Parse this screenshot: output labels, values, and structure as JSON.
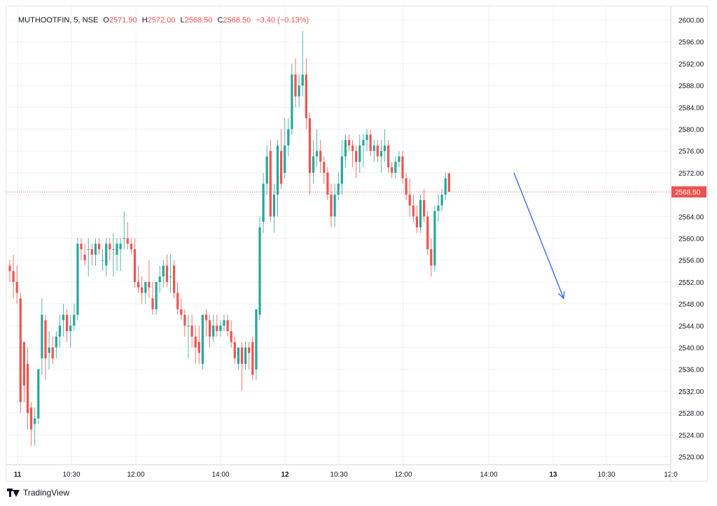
{
  "legend": {
    "symbol": "MUTHOOTFIN, 5, NSE",
    "o_label": "O",
    "o_value": "2571.90",
    "h_label": "H",
    "h_value": "2572.00",
    "l_label": "L",
    "l_value": "2568.50",
    "c_label": "C",
    "c_value": "2568.50",
    "change": "−3.40 (−0.13%)"
  },
  "brand": {
    "name": "TradingView"
  },
  "colors": {
    "up": "#26a69a",
    "down": "#ef5350",
    "grid": "#eef1f4",
    "arrow": "#2962ff",
    "price_line": "#ef5350"
  },
  "chart_data": {
    "type": "candlestick",
    "symbol": "MUTHOOTFIN",
    "interval": "5",
    "exchange": "NSE",
    "ylim": [
      2518,
      2602
    ],
    "y_ticks": [
      "2600.00",
      "2596.00",
      "2592.00",
      "2588.00",
      "2584.00",
      "2580.00",
      "2576.00",
      "2572.00",
      "2568.00",
      "2564.00",
      "2560.00",
      "2556.00",
      "2552.00",
      "2548.00",
      "2544.00",
      "2540.00",
      "2536.00",
      "2532.00",
      "2528.00",
      "2524.00",
      "2520.00"
    ],
    "x_ticks": [
      "11",
      "10:30",
      "12:00",
      "14:00",
      "12",
      "10:30",
      "12:00",
      "14:00",
      "13",
      "10:30",
      "12:0"
    ],
    "bold_x_ticks": [
      "11",
      "12",
      "13"
    ],
    "last_price": "2568.50",
    "grid": true,
    "candles": [
      [
        2555,
        2556,
        2552,
        2554
      ],
      [
        2554,
        2557,
        2549,
        2552
      ],
      [
        2552,
        2555,
        2548,
        2550
      ],
      [
        2549,
        2550,
        2528,
        2530
      ],
      [
        2541,
        2541,
        2530,
        2533
      ],
      [
        2537,
        2540,
        2525,
        2528
      ],
      [
        2529,
        2530,
        2522,
        2525
      ],
      [
        2526,
        2529,
        2522,
        2527
      ],
      [
        2527,
        2536,
        2526,
        2536
      ],
      [
        2538,
        2549,
        2535,
        2546
      ],
      [
        2545,
        2546,
        2534,
        2538
      ],
      [
        2539,
        2543,
        2536,
        2540
      ],
      [
        2540,
        2542,
        2537,
        2538
      ],
      [
        2540,
        2543,
        2538,
        2542
      ],
      [
        2542,
        2546,
        2540,
        2544
      ],
      [
        2545,
        2548,
        2542,
        2546
      ],
      [
        2546,
        2547,
        2541,
        2543
      ],
      [
        2543,
        2546,
        2540,
        2544
      ],
      [
        2544,
        2548,
        2543,
        2546
      ],
      [
        2546,
        2560,
        2545,
        2559
      ],
      [
        2559,
        2560,
        2556,
        2558
      ],
      [
        2557,
        2559,
        2555,
        2556
      ],
      [
        2558,
        2560,
        2553,
        2558
      ],
      [
        2558,
        2559,
        2555,
        2557
      ],
      [
        2557,
        2560,
        2555,
        2559
      ],
      [
        2559,
        2560,
        2557,
        2558
      ],
      [
        2556,
        2558,
        2554,
        2556
      ],
      [
        2555,
        2560,
        2553,
        2559
      ],
      [
        2559,
        2560,
        2556,
        2558
      ],
      [
        2558,
        2561,
        2553,
        2558
      ],
      [
        2557,
        2560,
        2554,
        2559
      ],
      [
        2558,
        2560,
        2554,
        2559
      ],
      [
        2560,
        2565,
        2558,
        2560
      ],
      [
        2560,
        2563,
        2558,
        2559
      ],
      [
        2559,
        2560,
        2557,
        2558
      ],
      [
        2558,
        2560,
        2551,
        2552
      ],
      [
        2552,
        2555,
        2550,
        2551
      ],
      [
        2551,
        2553,
        2548,
        2550
      ],
      [
        2550,
        2552,
        2548,
        2552
      ],
      [
        2552,
        2556,
        2549,
        2551
      ],
      [
        2549,
        2552,
        2546,
        2547
      ],
      [
        2547,
        2552,
        2546,
        2552
      ],
      [
        2552,
        2555,
        2550,
        2553
      ],
      [
        2553,
        2556,
        2551,
        2555
      ],
      [
        2555,
        2557,
        2551,
        2552
      ],
      [
        2553,
        2557,
        2550,
        2553
      ],
      [
        2555,
        2556,
        2549,
        2550
      ],
      [
        2550,
        2552,
        2546,
        2547
      ],
      [
        2547,
        2549,
        2545,
        2546
      ],
      [
        2546,
        2547,
        2542,
        2544
      ],
      [
        2544,
        2546,
        2538,
        2544
      ],
      [
        2544,
        2546,
        2540,
        2542
      ],
      [
        2542,
        2544,
        2537,
        2540
      ],
      [
        2541,
        2544,
        2537,
        2539
      ],
      [
        2537,
        2546,
        2536,
        2546
      ],
      [
        2546,
        2547,
        2542,
        2545
      ],
      [
        2545,
        2546,
        2540,
        2542
      ],
      [
        2542,
        2546,
        2541,
        2544
      ],
      [
        2544,
        2546,
        2542,
        2543
      ],
      [
        2543,
        2545,
        2542,
        2544
      ],
      [
        2544,
        2546,
        2543,
        2545
      ],
      [
        2545,
        2546,
        2542,
        2543
      ],
      [
        2543,
        2545,
        2540,
        2541
      ],
      [
        2541,
        2542,
        2537,
        2538
      ],
      [
        2537,
        2540,
        2536,
        2540
      ],
      [
        2540,
        2541,
        2532,
        2537
      ],
      [
        2537,
        2541,
        2536,
        2540
      ],
      [
        2540,
        2541,
        2536,
        2539
      ],
      [
        2541,
        2542,
        2534,
        2535
      ],
      [
        2536,
        2547,
        2534,
        2547
      ],
      [
        2546,
        2564,
        2545,
        2562
      ],
      [
        2563,
        2572,
        2561,
        2570
      ],
      [
        2570,
        2577,
        2568,
        2575
      ],
      [
        2576,
        2578,
        2563,
        2564
      ],
      [
        2564,
        2570,
        2561,
        2568
      ],
      [
        2568,
        2578,
        2564,
        2577
      ],
      [
        2576,
        2580,
        2569,
        2570
      ],
      [
        2572,
        2582,
        2571,
        2577
      ],
      [
        2577,
        2582,
        2575,
        2580
      ],
      [
        2580,
        2592,
        2579,
        2590
      ],
      [
        2590,
        2593,
        2584,
        2586
      ],
      [
        2586,
        2590,
        2584,
        2588
      ],
      [
        2588,
        2598,
        2586,
        2590
      ],
      [
        2590,
        2593,
        2580,
        2582
      ],
      [
        2582,
        2583,
        2568,
        2572
      ],
      [
        2572,
        2578,
        2570,
        2575
      ],
      [
        2575,
        2580,
        2573,
        2576
      ],
      [
        2576,
        2578,
        2572,
        2574
      ],
      [
        2574,
        2575,
        2570,
        2572
      ],
      [
        2572,
        2573,
        2567,
        2568
      ],
      [
        2568,
        2570,
        2562,
        2564
      ],
      [
        2564,
        2570,
        2562,
        2568
      ],
      [
        2568,
        2572,
        2567,
        2570
      ],
      [
        2570,
        2578,
        2568,
        2575
      ],
      [
        2575,
        2579,
        2573,
        2578
      ],
      [
        2578,
        2579,
        2576,
        2577
      ],
      [
        2577,
        2578,
        2573,
        2576
      ],
      [
        2576,
        2577,
        2571,
        2574
      ],
      [
        2574,
        2579,
        2572,
        2577
      ],
      [
        2577,
        2579,
        2573,
        2578
      ],
      [
        2578,
        2580,
        2576,
        2579
      ],
      [
        2579,
        2580,
        2575,
        2576
      ],
      [
        2576,
        2578,
        2574,
        2577
      ],
      [
        2577,
        2578,
        2574,
        2575
      ],
      [
        2575,
        2578,
        2572,
        2576
      ],
      [
        2576,
        2580,
        2574,
        2577
      ],
      [
        2577,
        2578,
        2572,
        2573
      ],
      [
        2573,
        2574,
        2571,
        2572
      ],
      [
        2572,
        2575,
        2571,
        2574
      ],
      [
        2574,
        2576,
        2573,
        2575
      ],
      [
        2575,
        2576,
        2570,
        2571
      ],
      [
        2571,
        2572,
        2567,
        2568
      ],
      [
        2568,
        2571,
        2564,
        2566
      ],
      [
        2566,
        2568,
        2563,
        2564
      ],
      [
        2564,
        2566,
        2561,
        2562
      ],
      [
        2562,
        2568,
        2561,
        2567
      ],
      [
        2567,
        2569,
        2563,
        2564
      ],
      [
        2564,
        2565,
        2557,
        2558
      ],
      [
        2558,
        2560,
        2553,
        2555
      ],
      [
        2555,
        2566,
        2554,
        2565
      ],
      [
        2565,
        2568,
        2563,
        2566
      ],
      [
        2566,
        2569,
        2565,
        2568
      ],
      [
        2568,
        2572,
        2567,
        2571
      ],
      [
        2571.9,
        2572,
        2568.5,
        2568.5
      ]
    ],
    "annotation": {
      "type": "arrow",
      "from": [
        "14:20 12",
        2572
      ],
      "to": [
        "13:05 12",
        2549
      ]
    }
  }
}
